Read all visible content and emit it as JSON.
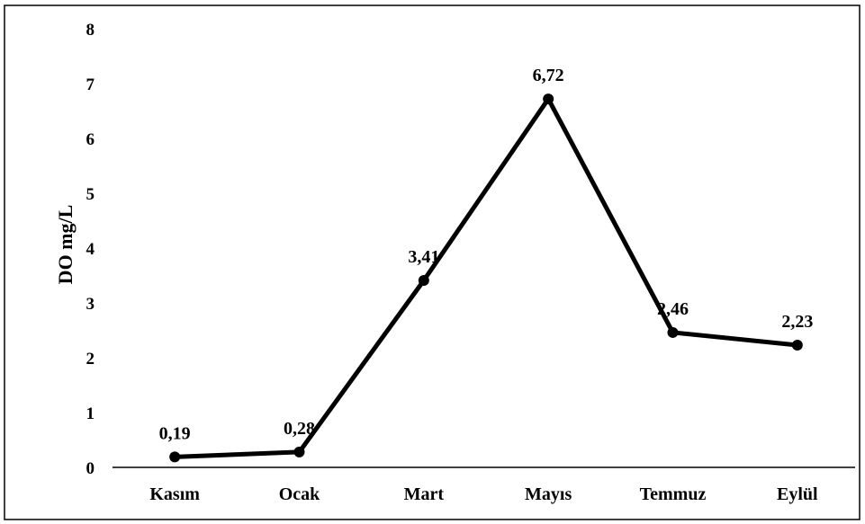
{
  "chart_data": {
    "type": "line",
    "title": "",
    "xlabel": "",
    "ylabel": "DO mg/L",
    "categories": [
      "Kasım",
      "Ocak",
      "Mart",
      "Mayıs",
      "Temmuz",
      "Eylül"
    ],
    "series": [
      {
        "values": [
          0.19,
          0.28,
          3.41,
          6.72,
          2.46,
          2.23
        ],
        "data_labels": [
          "0,19",
          "0,28",
          "3,41",
          "6,72",
          "2,46",
          "2,23"
        ],
        "color": "#000000"
      }
    ],
    "ylim": [
      0,
      8
    ],
    "yticks": [
      "0",
      "1",
      "2",
      "3",
      "4",
      "5",
      "6",
      "7",
      "8"
    ],
    "grid": false,
    "legend": "none"
  }
}
